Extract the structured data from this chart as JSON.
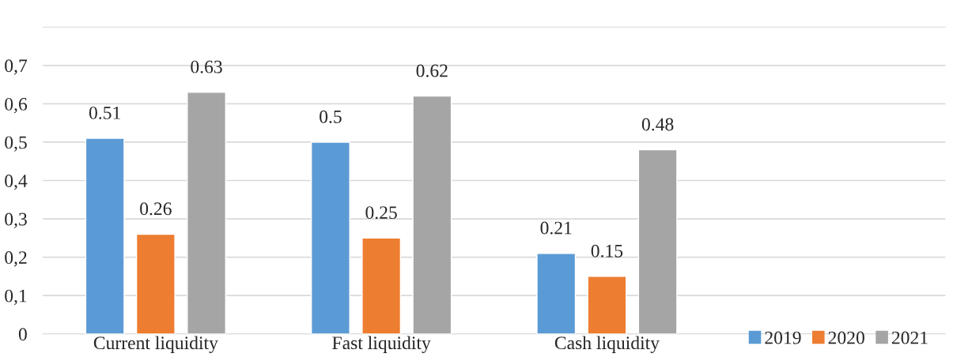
{
  "chart_data": {
    "type": "bar",
    "categories": [
      "Current liquidity",
      "Fast liquidity",
      "Cash liquidity"
    ],
    "series": [
      {
        "name": "2019",
        "color": "#5b9bd5",
        "values": [
          0.51,
          0.5,
          0.21
        ]
      },
      {
        "name": "2020",
        "color": "#ed7d31",
        "values": [
          0.26,
          0.25,
          0.15
        ]
      },
      {
        "name": "2021",
        "color": "#a5a5a5",
        "values": [
          0.63,
          0.62,
          0.48
        ]
      }
    ],
    "ylim": [
      0,
      0.8
    ],
    "yticks": [
      {
        "value": 0,
        "label": "0"
      },
      {
        "value": 0.1,
        "label": "0,1"
      },
      {
        "value": 0.2,
        "label": "0,2"
      },
      {
        "value": 0.3,
        "label": "0,3"
      },
      {
        "value": 0.4,
        "label": "0,4"
      },
      {
        "value": 0.5,
        "label": "0,5"
      },
      {
        "value": 0.6,
        "label": "0,6"
      },
      {
        "value": 0.7,
        "label": "0,7"
      }
    ],
    "grid": "y",
    "legend": "bottom right",
    "data_labels": true
  }
}
